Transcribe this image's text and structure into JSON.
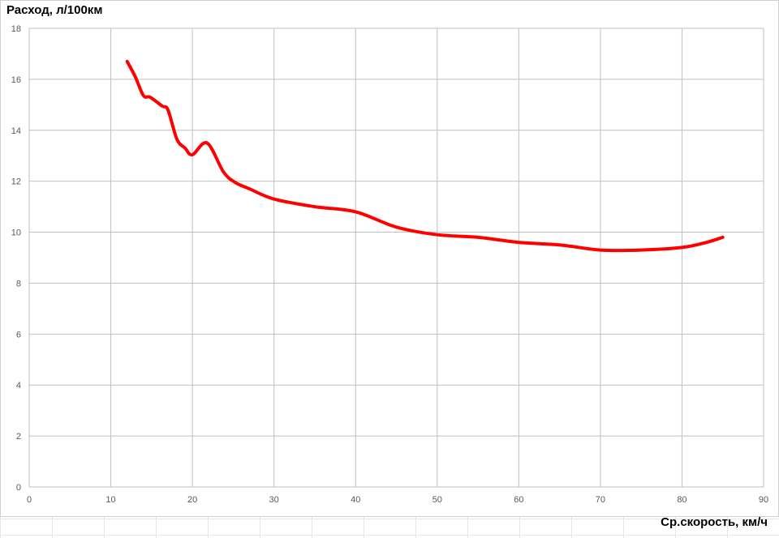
{
  "chart_data": {
    "type": "line",
    "title": "",
    "xlabel": "Ср.скорость, км/ч",
    "ylabel": "Расход, л/100км",
    "xlim": [
      0,
      90
    ],
    "ylim": [
      0,
      18
    ],
    "xticks": [
      0,
      10,
      20,
      30,
      40,
      50,
      60,
      70,
      80,
      90
    ],
    "yticks": [
      0,
      2,
      4,
      6,
      8,
      10,
      12,
      14,
      16,
      18
    ],
    "grid": true,
    "line_color": "#ff0000",
    "series": [
      {
        "x": [
          12,
          13,
          14,
          14.8,
          16.3,
          17,
          18.1,
          19.1,
          20,
          21.8,
          23.8,
          25.2,
          27,
          30,
          35,
          40,
          45,
          50,
          55,
          60,
          65,
          70,
          75,
          80,
          83,
          85
        ],
        "y": [
          16.7,
          16.1,
          15.36,
          15.3,
          14.95,
          14.8,
          13.65,
          13.3,
          13.04,
          13.5,
          12.37,
          11.96,
          11.7,
          11.3,
          11.0,
          10.8,
          10.2,
          9.9,
          9.8,
          9.6,
          9.5,
          9.3,
          9.3,
          9.4,
          9.6,
          9.8
        ]
      }
    ]
  }
}
